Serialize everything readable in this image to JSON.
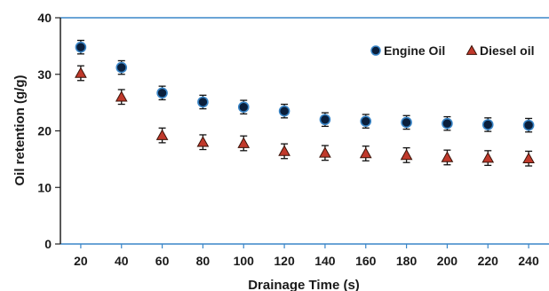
{
  "chart_data": {
    "type": "scatter",
    "xlabel": "Drainage Time (s)",
    "ylabel": "Oil retention (g/g)",
    "xlim": [
      10,
      250
    ],
    "ylim": [
      0,
      40
    ],
    "xticks": [
      20,
      40,
      60,
      80,
      100,
      120,
      140,
      160,
      180,
      200,
      220,
      240
    ],
    "yticks": [
      0,
      10,
      20,
      30,
      40
    ],
    "x": [
      20,
      40,
      60,
      80,
      100,
      120,
      140,
      160,
      180,
      200,
      220,
      240
    ],
    "grid": false,
    "legend_position": "top-right",
    "series": [
      {
        "name": "Engine Oil",
        "marker": "circle",
        "color": "#0a1f3c",
        "edge_color": "#3a86c8",
        "values": [
          34.8,
          31.2,
          26.7,
          25.1,
          24.2,
          23.5,
          22.0,
          21.7,
          21.5,
          21.3,
          21.1,
          21.0
        ],
        "errors": [
          1.2,
          1.2,
          1.2,
          1.2,
          1.2,
          1.2,
          1.2,
          1.2,
          1.2,
          1.2,
          1.2,
          1.2
        ]
      },
      {
        "name": "Diesel oil",
        "marker": "triangle",
        "color": "#c0392b",
        "edge_color": "#3a1208",
        "values": [
          30.2,
          26.0,
          19.2,
          18.0,
          17.8,
          16.4,
          16.1,
          16.0,
          15.7,
          15.3,
          15.2,
          15.1
        ],
        "errors": [
          1.3,
          1.3,
          1.3,
          1.3,
          1.3,
          1.3,
          1.3,
          1.3,
          1.3,
          1.3,
          1.3,
          1.3
        ]
      }
    ]
  }
}
